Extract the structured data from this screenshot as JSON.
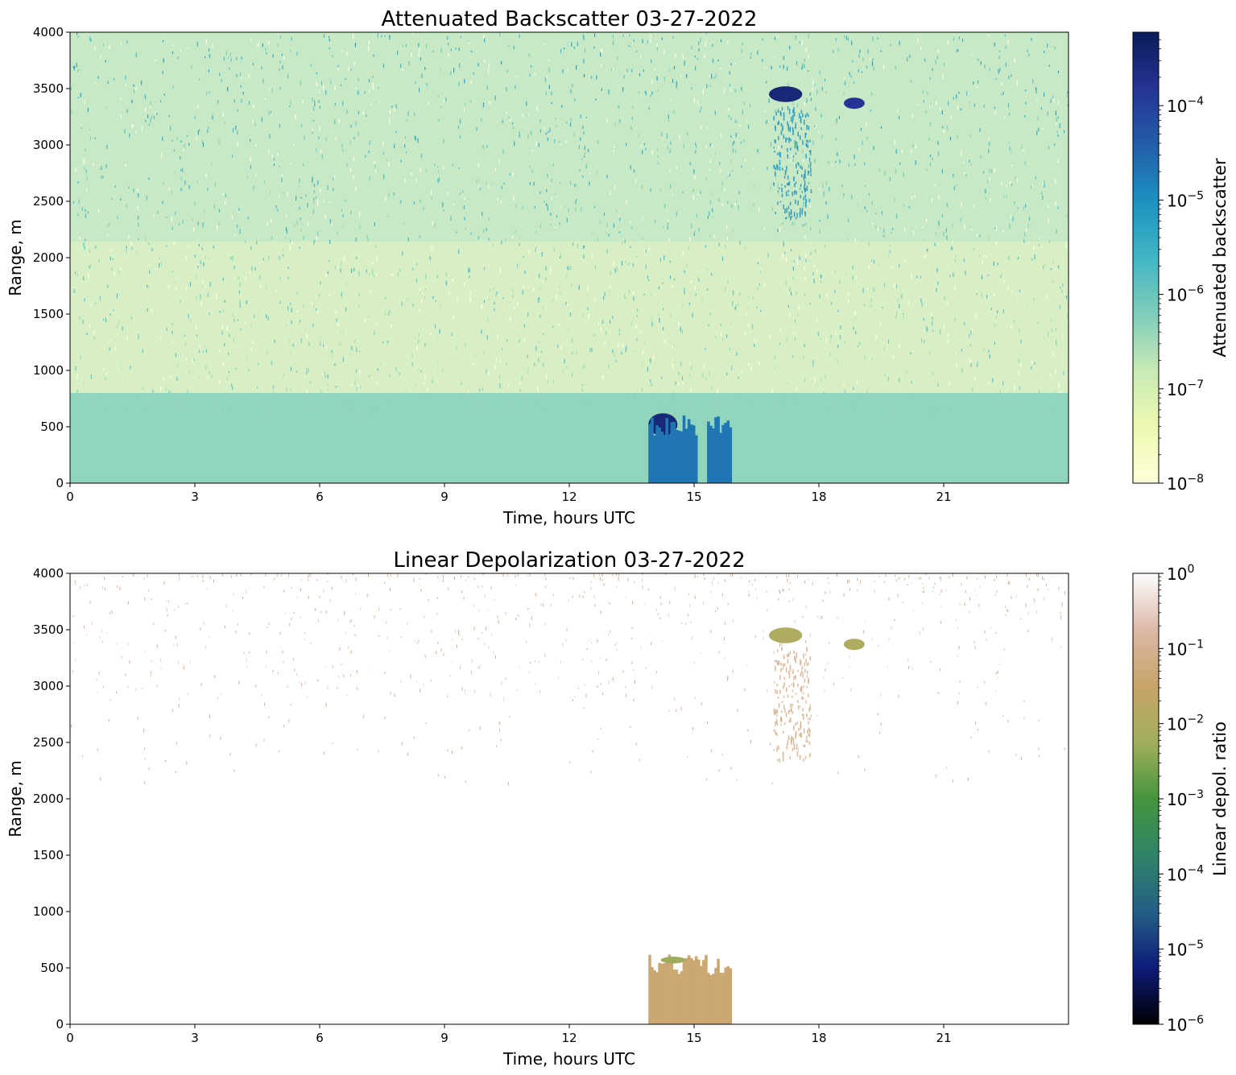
{
  "figure": {
    "panels": [
      {
        "title": "Attenuated Backscatter 03-27-2022",
        "xlabel": "Time, hours UTC",
        "ylabel": "Range, m",
        "colorbar_label": "Attenuated backscatter"
      },
      {
        "title": "Linear Depolarization 03-27-2022",
        "xlabel": "Time, hours UTC",
        "ylabel": "Range, m",
        "colorbar_label": "Linear depol. ratio"
      }
    ]
  },
  "chart_data": [
    {
      "type": "heatmap",
      "title": "Attenuated Backscatter 03-27-2022",
      "xlabel": "Time, hours UTC",
      "ylabel": "Range, m",
      "xlim": [
        0,
        24
      ],
      "ylim": [
        0,
        4000
      ],
      "xticks": [
        0,
        3,
        6,
        9,
        12,
        15,
        18,
        21
      ],
      "yticks": [
        0,
        500,
        1000,
        1500,
        2000,
        2500,
        3000,
        3500,
        4000
      ],
      "colorbar": {
        "label": "Attenuated backscatter",
        "scale": "log",
        "range": [
          1e-08,
          0.0006
        ],
        "ticks": [
          {
            "value": 1e-08,
            "mant": "10",
            "exp": "−8"
          },
          {
            "value": 1e-07,
            "mant": "10",
            "exp": "−7"
          },
          {
            "value": 1e-06,
            "mant": "10",
            "exp": "−6"
          },
          {
            "value": 1e-05,
            "mant": "10",
            "exp": "−5"
          },
          {
            "value": 0.0001,
            "mant": "10",
            "exp": "−4"
          }
        ],
        "colormap": "YlGnBu",
        "stops": [
          "#ffffd9",
          "#edf8b1",
          "#c7e9b4",
          "#7fcdbb",
          "#41b6c4",
          "#1d91c0",
          "#225ea8",
          "#253494",
          "#081d58"
        ]
      },
      "features": [
        {
          "name": "boundary layer aerosol",
          "x": [
            0,
            24
          ],
          "y": [
            0,
            800
          ],
          "value": 5e-07
        },
        {
          "name": "low cloud",
          "x": [
            13.9,
            14.6
          ],
          "y": [
            420,
            620
          ],
          "value": 0.0003
        },
        {
          "name": "precipitation",
          "x": [
            13.9,
            15.9
          ],
          "y": [
            0,
            600
          ],
          "value": 2e-05
        },
        {
          "name": "upper cloud",
          "x": [
            16.8,
            17.6
          ],
          "y": [
            3380,
            3520
          ],
          "value": 0.0003
        },
        {
          "name": "upper cloud",
          "x": [
            18.6,
            19.1
          ],
          "y": [
            3320,
            3420
          ],
          "value": 0.00015
        },
        {
          "name": "virga",
          "x": [
            16.9,
            17.8
          ],
          "y": [
            2350,
            3350
          ],
          "value": 1e-05
        }
      ]
    },
    {
      "type": "heatmap",
      "title": "Linear Depolarization 03-27-2022",
      "xlabel": "Time, hours UTC",
      "ylabel": "Range, m",
      "xlim": [
        0,
        24
      ],
      "ylim": [
        0,
        4000
      ],
      "xticks": [
        0,
        3,
        6,
        9,
        12,
        15,
        18,
        21
      ],
      "yticks": [
        0,
        500,
        1000,
        1500,
        2000,
        2500,
        3000,
        3500,
        4000
      ],
      "colorbar": {
        "label": "Linear depol. ratio",
        "scale": "log",
        "range": [
          1e-06,
          1
        ],
        "ticks": [
          {
            "value": 1e-06,
            "mant": "10",
            "exp": "−6"
          },
          {
            "value": 1e-05,
            "mant": "10",
            "exp": "−5"
          },
          {
            "value": 0.0001,
            "mant": "10",
            "exp": "−4"
          },
          {
            "value": 0.001,
            "mant": "10",
            "exp": "−3"
          },
          {
            "value": 0.01,
            "mant": "10",
            "exp": "−2"
          },
          {
            "value": 0.1,
            "mant": "10",
            "exp": "−1"
          },
          {
            "value": 1,
            "mant": "10",
            "exp": "0"
          }
        ],
        "colormap": "gist_earth",
        "stops": [
          "#000000",
          "#0d1c78",
          "#245f85",
          "#2f8367",
          "#45953d",
          "#a3ae5c",
          "#c8a46a",
          "#dcb8a8",
          "#fefefe"
        ]
      },
      "features": [
        {
          "name": "aerosol speckle aloft",
          "x": [
            0,
            24
          ],
          "y": [
            2900,
            4000
          ],
          "value": 0.15
        },
        {
          "name": "precipitation",
          "x": [
            13.9,
            15.9
          ],
          "y": [
            0,
            620
          ],
          "value": 0.04
        },
        {
          "name": "cloud base",
          "x": [
            14.2,
            14.8
          ],
          "y": [
            540,
            600
          ],
          "value": 0.005
        },
        {
          "name": "upper cloud",
          "x": [
            16.8,
            17.6
          ],
          "y": [
            3380,
            3520
          ],
          "value": 0.01
        },
        {
          "name": "upper cloud",
          "x": [
            18.6,
            19.1
          ],
          "y": [
            3320,
            3420
          ],
          "value": 0.01
        },
        {
          "name": "virga",
          "x": [
            16.9,
            17.8
          ],
          "y": [
            2350,
            3350
          ],
          "value": 0.08
        }
      ]
    }
  ]
}
